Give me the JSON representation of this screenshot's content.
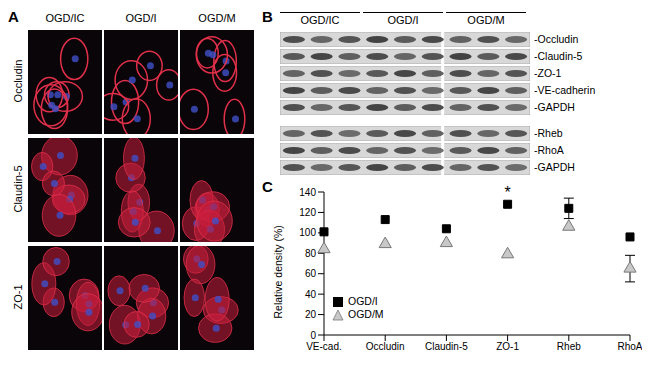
{
  "panel_labels": [
    "A",
    "B",
    "C"
  ],
  "panel_a": {
    "columns": [
      "OGD/IC",
      "OGD/I",
      "OGD/M"
    ],
    "rows": [
      "Occludin",
      "Claudin-5",
      "ZO-1"
    ]
  },
  "panel_b": {
    "groups": [
      "OGD/IC",
      "OGD/I",
      "OGD/M"
    ],
    "blots_top": [
      "-Occludin",
      "-Claudin-5",
      "-ZO-1",
      "-VE-cadherin",
      "-GAPDH"
    ],
    "blots_bottom": [
      "-Rheb",
      "-RhoA",
      "-GAPDH"
    ]
  },
  "chart_data": {
    "type": "scatter",
    "y_label": "Relative density (%)",
    "categories": [
      "VE-cad.",
      "Occludin",
      "Claudin-5",
      "ZO-1",
      "Rheb",
      "RhoA"
    ],
    "series": [
      {
        "name": "OGD/I",
        "color": "#000000",
        "marker": "square",
        "values": [
          101,
          113,
          104,
          128,
          124,
          96
        ],
        "errors": [
          null,
          null,
          null,
          null,
          10,
          null
        ]
      },
      {
        "name": "OGD/M",
        "color": "#c8c8c8",
        "marker": "triangle",
        "values": [
          84,
          89,
          90,
          79,
          106,
          65
        ],
        "errors": [
          null,
          null,
          null,
          null,
          null,
          13
        ]
      }
    ],
    "ylim": [
      0,
      140
    ],
    "yticks": [
      0,
      20,
      40,
      60,
      80,
      100,
      120,
      140
    ],
    "grid": false,
    "legend": "lower left",
    "annotations": [
      {
        "text": "*",
        "x": "ZO-1",
        "series": "OGD/I"
      }
    ]
  }
}
